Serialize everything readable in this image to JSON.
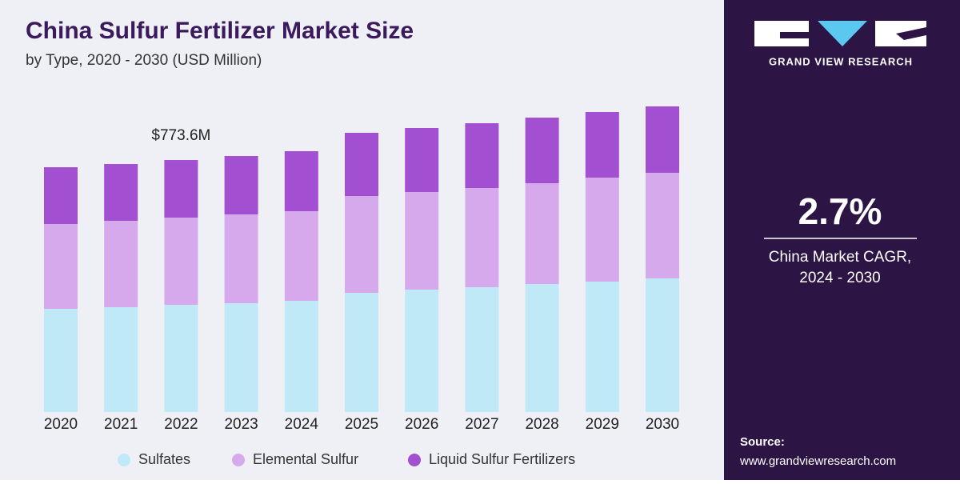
{
  "chart_data": {
    "type": "stacked_bar",
    "title": "China Sulfur Fertilizer Market Size",
    "subtitle": "by Type, 2020 - 2030 (USD Million)",
    "categories": [
      "2020",
      "2021",
      "2022",
      "2023",
      "2024",
      "2025",
      "2026",
      "2027",
      "2028",
      "2029",
      "2030"
    ],
    "series": [
      {
        "name": "Sulfates",
        "color": "#c0e9f8",
        "values": [
          316.8,
          321.7,
          329.1,
          334.0,
          341.4,
          365.9,
          375.8,
          383.1,
          392.9,
          400.3,
          410.2
        ]
      },
      {
        "name": "Elemental Sulfur",
        "color": "#d6a9ec",
        "values": [
          260.3,
          265.2,
          267.7,
          272.6,
          275.1,
          297.2,
          299.6,
          304.5,
          309.5,
          319.3,
          324.2
        ]
      },
      {
        "name": "Liquid Sulfur Fertilizers",
        "color": "#a24fd2",
        "values": [
          174.4,
          174.4,
          176.8,
          179.3,
          184.2,
          194.0,
          196.5,
          198.9,
          201.4,
          201.4,
          203.8
        ]
      }
    ],
    "annotation": {
      "label": "$773.6M",
      "category": "2022"
    }
  },
  "panel": {
    "brand": "GRAND VIEW RESEARCH",
    "cagr": "2.7%",
    "cagr_label_1": "China Market CAGR,",
    "cagr_label_2": "2024 - 2030",
    "source_title": "Source:",
    "source_url": "www.grandviewresearch.com"
  }
}
